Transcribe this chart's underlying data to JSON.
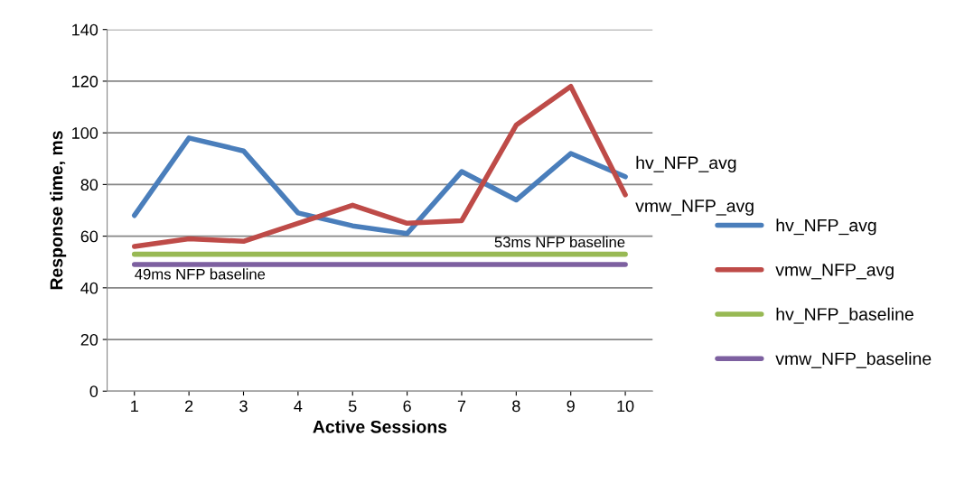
{
  "chart_data": {
    "type": "line",
    "xlabel": "Active Sessions",
    "ylabel": "Response time, ms",
    "categories": [
      "1",
      "2",
      "3",
      "4",
      "5",
      "6",
      "7",
      "8",
      "9",
      "10"
    ],
    "series": [
      {
        "name": "hv_NFP_avg",
        "color": "#4a7ebb",
        "values": [
          68,
          98,
          93,
          69,
          64,
          61,
          85,
          74,
          92,
          83
        ]
      },
      {
        "name": "vmw_NFP_avg",
        "color": "#be4b48",
        "values": [
          56,
          59,
          58,
          65,
          72,
          65,
          66,
          103,
          118,
          76
        ]
      },
      {
        "name": "hv_NFP_baseline",
        "color": "#98b954",
        "values": [
          53,
          53,
          53,
          53,
          53,
          53,
          53,
          53,
          53,
          53
        ]
      },
      {
        "name": "vmw_NFP_baseline",
        "color": "#7d60a0",
        "values": [
          49,
          49,
          49,
          49,
          49,
          49,
          49,
          49,
          49,
          49
        ]
      }
    ],
    "annotations": [
      {
        "text": "53ms NFP baseline",
        "x": "10",
        "y": 53
      },
      {
        "text": "49ms NFP baseline",
        "x": "1",
        "y": 49
      },
      {
        "text": "hv_NFP_avg",
        "x": "10",
        "y": 83
      },
      {
        "text": "vmw_NFP_avg",
        "x": "10",
        "y": 76
      }
    ],
    "ylim": [
      0,
      140
    ],
    "yticks": [
      0,
      20,
      40,
      60,
      80,
      100,
      120,
      140
    ],
    "grid": "y",
    "legend": "right",
    "marker": "none",
    "line_style": "solid"
  }
}
